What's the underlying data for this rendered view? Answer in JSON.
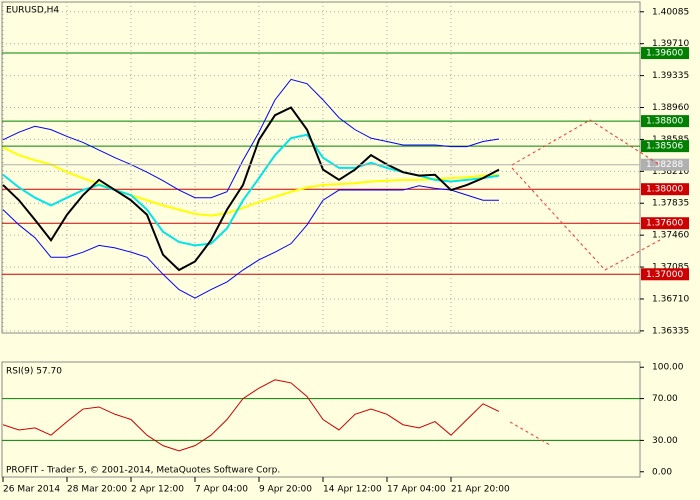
{
  "footer": "PROFIT - Trader 5, © 2001-2014, MetaQuotes Software Corp.",
  "chart_data": [
    {
      "type": "line",
      "title": "EURUSD,H4",
      "categories": [
        "26 Mar 2014",
        null,
        null,
        null,
        "28 Mar 20:00",
        null,
        null,
        null,
        "2 Apr 12:00",
        null,
        null,
        null,
        "7 Apr 04:00",
        null,
        null,
        null,
        "9 Apr 20:00",
        null,
        null,
        null,
        "14 Apr 12:00",
        null,
        null,
        null,
        "17 Apr 04:00",
        null,
        null,
        null,
        "21 Apr 20:00",
        null,
        null,
        null
      ],
      "ylim": [
        1.3631,
        1.402
      ],
      "yticks": [
        1.40085,
        {
          "value": 1.3971,
          "label": "1.39710"
        },
        1.39335,
        {
          "value": 1.3896,
          "label": "1.38960"
        },
        1.38585,
        {
          "value": 1.3821,
          "label": "1.38210"
        },
        1.37835,
        {
          "value": 1.3746,
          "label": "1.37460"
        },
        1.37085,
        {
          "value": 1.3671,
          "label": "1.36710"
        },
        1.36335
      ],
      "grid": true,
      "levels": [
        {
          "value": 1.396,
          "label": "1.39600",
          "color": "#008000"
        },
        {
          "value": 1.388,
          "label": "1.38800",
          "color": "#008000"
        },
        {
          "value": 1.38506,
          "label": "1.38506",
          "color": "#008000"
        },
        {
          "value": 1.38,
          "label": "1.38000",
          "color": "#cc0000"
        },
        {
          "value": 1.376,
          "label": "1.37600",
          "color": "#cc0000"
        },
        {
          "value": 1.37,
          "label": "1.37000",
          "color": "#cc0000"
        }
      ],
      "current_price": 1.38288,
      "current_price_color": "#b0b0b0",
      "series": [
        {
          "color": "#0000ff",
          "values": [
            1.3858,
            1.3867,
            1.3874,
            1.387,
            1.3862,
            1.3855,
            1.3846,
            1.3837,
            1.3829,
            1.382,
            1.381,
            1.3799,
            1.379,
            1.379,
            1.3797,
            1.3834,
            1.3867,
            1.3905,
            1.3929,
            1.3924,
            1.3905,
            1.3884,
            1.387,
            1.386,
            1.3856,
            1.3852,
            1.3852,
            1.3852,
            1.385,
            1.385,
            1.3856,
            1.3859
          ]
        },
        {
          "color": "#0000ff",
          "values": [
            1.3776,
            1.3758,
            1.3743,
            1.372,
            1.372,
            1.3726,
            1.3734,
            1.3731,
            1.3726,
            1.372,
            1.37,
            1.3682,
            1.3672,
            1.3682,
            1.3691,
            1.3705,
            1.3717,
            1.3726,
            1.3736,
            1.3758,
            1.3787,
            1.3799,
            1.3799,
            1.3799,
            1.3799,
            1.3799,
            1.3804,
            1.3801,
            1.3799,
            1.3793,
            1.3787,
            1.3787
          ]
        },
        {
          "color": "#ffff00",
          "values": [
            1.3849,
            1.384,
            1.3834,
            1.3829,
            1.382,
            1.3813,
            1.3806,
            1.3799,
            1.3793,
            1.3787,
            1.3781,
            1.3776,
            1.3771,
            1.3769,
            1.3772,
            1.3778,
            1.3785,
            1.3791,
            1.3797,
            1.3802,
            1.3805,
            1.3806,
            1.3807,
            1.3809,
            1.381,
            1.3811,
            1.3811,
            1.3812,
            1.3813,
            1.3814,
            1.3816,
            1.3817
          ]
        },
        {
          "color": "#00e5e5",
          "values": [
            1.3817,
            1.3802,
            1.379,
            1.3781,
            1.379,
            1.3799,
            1.3805,
            1.3799,
            1.3793,
            1.3776,
            1.375,
            1.3738,
            1.3734,
            1.3736,
            1.3754,
            1.3787,
            1.3813,
            1.384,
            1.386,
            1.3864,
            1.3837,
            1.3825,
            1.3825,
            1.3831,
            1.3825,
            1.382,
            1.3816,
            1.3811,
            1.3809,
            1.3811,
            1.3813,
            1.3816
          ]
        },
        {
          "color": "#000000",
          "values": [
            1.3805,
            1.3787,
            1.3764,
            1.374,
            1.377,
            1.3793,
            1.3811,
            1.3799,
            1.3787,
            1.377,
            1.3723,
            1.3705,
            1.3715,
            1.374,
            1.3776,
            1.3805,
            1.3858,
            1.3887,
            1.3896,
            1.387,
            1.3823,
            1.3811,
            1.3823,
            1.384,
            1.3829,
            1.382,
            1.3816,
            1.3817,
            1.3799,
            1.3805,
            1.3813,
            1.3823
          ]
        }
      ]
    },
    {
      "type": "line",
      "title": "RSI(9) 57.70",
      "ylim": [
        -5,
        105
      ],
      "yticks": [
        {
          "value": 100,
          "label": "100.00"
        },
        {
          "value": 70,
          "label": "70.00"
        },
        {
          "value": 30,
          "label": "30.00"
        },
        {
          "value": 0,
          "label": "0.00"
        }
      ],
      "levels": [
        {
          "value": 70,
          "color": "#008000"
        },
        {
          "value": 30,
          "color": "#008000"
        }
      ],
      "series": [
        {
          "color": "#cc0000",
          "values": [
            45,
            40,
            42,
            35,
            48,
            60,
            62,
            55,
            50,
            35,
            25,
            20,
            25,
            35,
            50,
            70,
            80,
            88,
            85,
            72,
            50,
            40,
            55,
            60,
            55,
            45,
            42,
            48,
            35,
            50,
            65,
            57.7
          ]
        }
      ]
    }
  ]
}
